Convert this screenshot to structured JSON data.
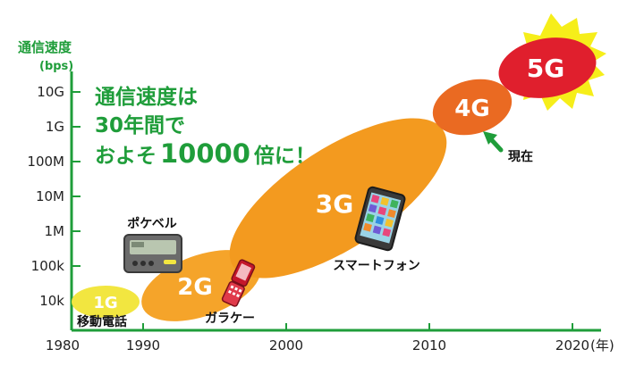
{
  "axis": {
    "y_title": "通信速度",
    "y_unit": "(bps)",
    "y_ticks": [
      "10k",
      "100k",
      "1M",
      "10M",
      "100M",
      "1G",
      "10G"
    ],
    "x_ticks": [
      "1980",
      "1990",
      "2000",
      "2010",
      "2020"
    ],
    "x_unit": "(年)"
  },
  "headline": {
    "line1": "通信速度は",
    "line2": "30年間で",
    "line3_prefix": "およそ",
    "line3_number": "10000",
    "line3_suffix": "倍に！"
  },
  "generations": [
    {
      "label": "1G",
      "color": "#f2e640"
    },
    {
      "label": "2G",
      "color": "#f5a42a"
    },
    {
      "label": "3G",
      "color": "#f39a1f"
    },
    {
      "label": "4G",
      "color": "#ea6a22"
    },
    {
      "label": "5G",
      "color": "#e01f2d"
    }
  ],
  "captions": {
    "mobile_phone": "移動電話",
    "pager": "ポケベル",
    "feature_phone": "ガラケー",
    "smartphone": "スマートフォン",
    "current": "現在"
  },
  "colors": {
    "green": "#1f9d3a",
    "star": "#f6ee1a"
  }
}
